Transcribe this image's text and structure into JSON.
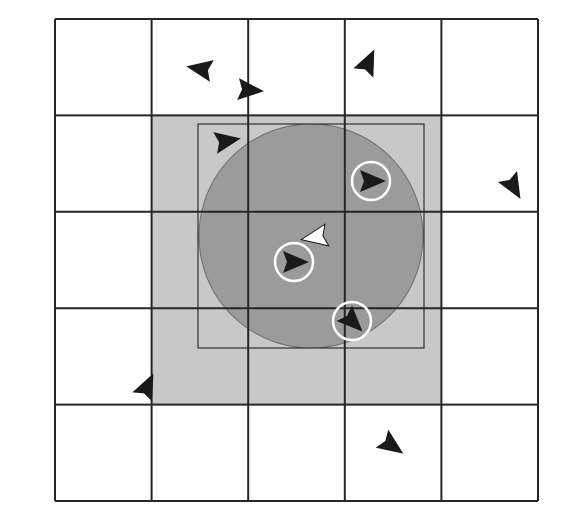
{
  "diagram": {
    "grid": {
      "rows": 5,
      "cols": 5
    },
    "highlighted_region": {
      "row_from": 1,
      "row_to": 3,
      "col_from": 1,
      "col_to": 3
    },
    "colors": {
      "background": "#ffffff",
      "grid_line": "#262626",
      "highlight_fill": "#c8c8c8",
      "circle_fill": "#9b9b9b",
      "box_stroke": "#3a3a3a",
      "agent": "#1a1a1a",
      "focal_agent": "#ffffff",
      "neighbor_ring": "#ffffff"
    },
    "agents": [
      {
        "id": 1,
        "icon": "arrowhead-icon",
        "role": "other"
      },
      {
        "id": 2,
        "icon": "arrowhead-icon",
        "role": "other"
      },
      {
        "id": 3,
        "icon": "arrowhead-icon",
        "role": "other"
      },
      {
        "id": 4,
        "icon": "arrowhead-icon",
        "role": "other"
      },
      {
        "id": 5,
        "icon": "arrowhead-icon",
        "role": "neighbor"
      },
      {
        "id": 6,
        "icon": "arrowhead-icon",
        "role": "other"
      },
      {
        "id": 7,
        "icon": "arrowhead-icon",
        "role": "focal"
      },
      {
        "id": 8,
        "icon": "arrowhead-icon",
        "role": "neighbor"
      },
      {
        "id": 9,
        "icon": "arrowhead-icon",
        "role": "neighbor"
      },
      {
        "id": 10,
        "icon": "arrowhead-icon",
        "role": "other"
      },
      {
        "id": 11,
        "icon": "arrowhead-icon",
        "role": "other"
      }
    ]
  }
}
